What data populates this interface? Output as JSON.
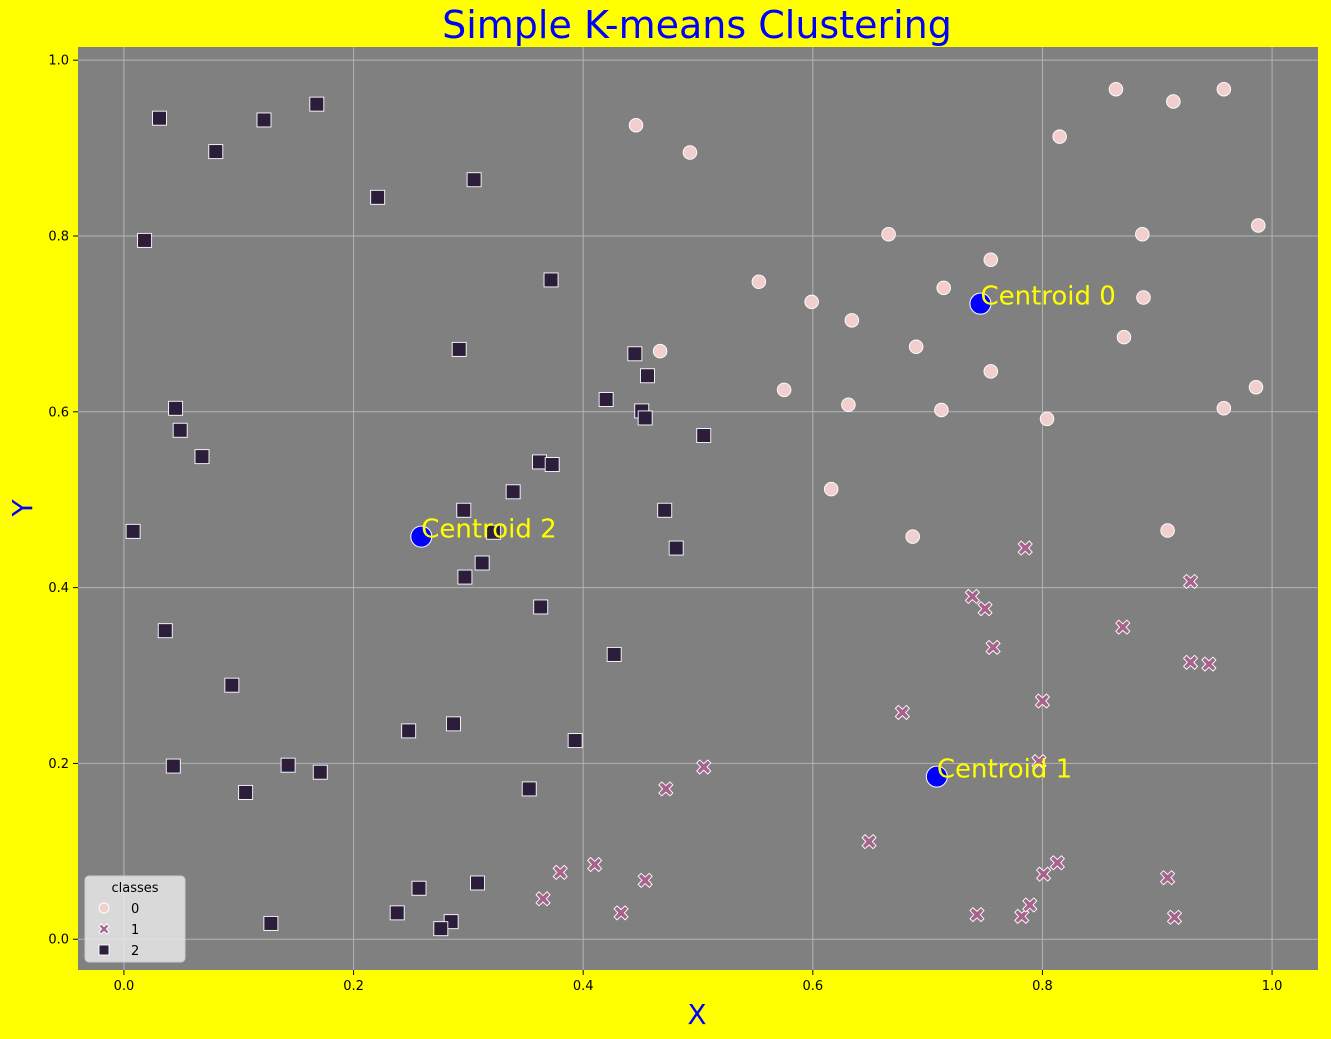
{
  "chart_data": {
    "type": "scatter",
    "title": "Simple K-means Clustering",
    "xlabel": "X",
    "ylabel": "Y",
    "xlim": [
      -0.04,
      1.04
    ],
    "ylim": [
      -0.035,
      1.015
    ],
    "xticks": [
      "0.0",
      "0.2",
      "0.4",
      "0.6",
      "0.8",
      "1.0"
    ],
    "yticks": [
      "0.0",
      "0.2",
      "0.4",
      "0.6",
      "0.8",
      "1.0"
    ],
    "grid": true,
    "legend": {
      "title": "classes",
      "placement": "lower-left",
      "entries": [
        "0",
        "1",
        "2"
      ]
    },
    "colors": {
      "page_background": "#ffff00",
      "plot_background": "#808080",
      "title": "#0000ff",
      "axis_label": "#0000ff",
      "centroid": "#0000ff",
      "centroid_label": "#ffff00",
      "class_0": "#f1cfcf",
      "class_1": "#a8628e",
      "class_2": "#2c1e3b"
    },
    "series": [
      {
        "name": "0",
        "marker": "circle",
        "points": [
          [
            0.446,
            0.926
          ],
          [
            0.493,
            0.895
          ],
          [
            0.864,
            0.967
          ],
          [
            0.914,
            0.953
          ],
          [
            0.958,
            0.967
          ],
          [
            0.815,
            0.913
          ],
          [
            0.988,
            0.812
          ],
          [
            0.666,
            0.802
          ],
          [
            0.887,
            0.802
          ],
          [
            0.755,
            0.773
          ],
          [
            0.553,
            0.748
          ],
          [
            0.714,
            0.741
          ],
          [
            0.599,
            0.725
          ],
          [
            0.888,
            0.73
          ],
          [
            0.634,
            0.704
          ],
          [
            0.871,
            0.685
          ],
          [
            0.467,
            0.669
          ],
          [
            0.69,
            0.674
          ],
          [
            0.755,
            0.646
          ],
          [
            0.575,
            0.625
          ],
          [
            0.986,
            0.628
          ],
          [
            0.631,
            0.608
          ],
          [
            0.712,
            0.602
          ],
          [
            0.958,
            0.604
          ],
          [
            0.804,
            0.592
          ],
          [
            0.616,
            0.512
          ],
          [
            0.687,
            0.458
          ],
          [
            0.909,
            0.465
          ]
        ]
      },
      {
        "name": "1",
        "marker": "x",
        "points": [
          [
            0.785,
            0.445
          ],
          [
            0.739,
            0.39
          ],
          [
            0.75,
            0.376
          ],
          [
            0.929,
            0.407
          ],
          [
            0.87,
            0.355
          ],
          [
            0.757,
            0.332
          ],
          [
            0.929,
            0.315
          ],
          [
            0.945,
            0.313
          ],
          [
            0.8,
            0.271
          ],
          [
            0.678,
            0.258
          ],
          [
            0.505,
            0.196
          ],
          [
            0.797,
            0.202
          ],
          [
            0.472,
            0.171
          ],
          [
            0.649,
            0.111
          ],
          [
            0.41,
            0.085
          ],
          [
            0.38,
            0.076
          ],
          [
            0.454,
            0.067
          ],
          [
            0.813,
            0.087
          ],
          [
            0.801,
            0.074
          ],
          [
            0.909,
            0.07
          ],
          [
            0.365,
            0.046
          ],
          [
            0.433,
            0.03
          ],
          [
            0.743,
            0.028
          ],
          [
            0.782,
            0.026
          ],
          [
            0.789,
            0.039
          ],
          [
            0.915,
            0.025
          ]
        ]
      },
      {
        "name": "2",
        "marker": "square",
        "points": [
          [
            0.031,
            0.934
          ],
          [
            0.122,
            0.932
          ],
          [
            0.168,
            0.95
          ],
          [
            0.08,
            0.896
          ],
          [
            0.305,
            0.864
          ],
          [
            0.221,
            0.844
          ],
          [
            0.018,
            0.795
          ],
          [
            0.372,
            0.75
          ],
          [
            0.292,
            0.671
          ],
          [
            0.445,
            0.666
          ],
          [
            0.456,
            0.641
          ],
          [
            0.42,
            0.614
          ],
          [
            0.451,
            0.601
          ],
          [
            0.454,
            0.593
          ],
          [
            0.045,
            0.604
          ],
          [
            0.049,
            0.579
          ],
          [
            0.505,
            0.573
          ],
          [
            0.068,
            0.549
          ],
          [
            0.362,
            0.543
          ],
          [
            0.373,
            0.54
          ],
          [
            0.339,
            0.509
          ],
          [
            0.471,
            0.488
          ],
          [
            0.296,
            0.488
          ],
          [
            0.008,
            0.464
          ],
          [
            0.322,
            0.463
          ],
          [
            0.481,
            0.445
          ],
          [
            0.312,
            0.428
          ],
          [
            0.297,
            0.412
          ],
          [
            0.363,
            0.378
          ],
          [
            0.036,
            0.351
          ],
          [
            0.427,
            0.324
          ],
          [
            0.094,
            0.289
          ],
          [
            0.287,
            0.245
          ],
          [
            0.248,
            0.237
          ],
          [
            0.393,
            0.226
          ],
          [
            0.043,
            0.197
          ],
          [
            0.143,
            0.198
          ],
          [
            0.171,
            0.19
          ],
          [
            0.106,
            0.167
          ],
          [
            0.353,
            0.171
          ],
          [
            0.257,
            0.058
          ],
          [
            0.308,
            0.064
          ],
          [
            0.238,
            0.03
          ],
          [
            0.128,
            0.018
          ],
          [
            0.285,
            0.02
          ],
          [
            0.276,
            0.012
          ]
        ]
      }
    ],
    "centroids": [
      {
        "label": "Centroid 0",
        "x": 0.746,
        "y": 0.723
      },
      {
        "label": "Centroid 1",
        "x": 0.708,
        "y": 0.185
      },
      {
        "label": "Centroid 2",
        "x": 0.259,
        "y": 0.458
      }
    ]
  }
}
